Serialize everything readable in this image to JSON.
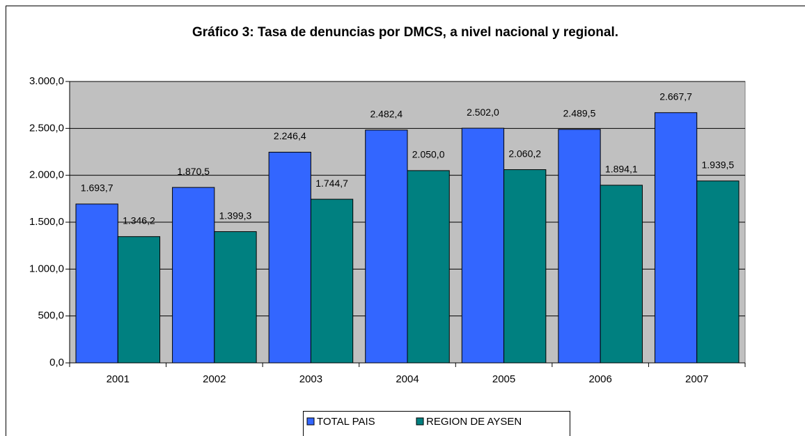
{
  "chart_data": {
    "type": "bar",
    "title": "Gráfico 3: Tasa de denuncias por DMCS, a nivel nacional y regional.",
    "categories": [
      "2001",
      "2002",
      "2003",
      "2004",
      "2005",
      "2006",
      "2007"
    ],
    "series": [
      {
        "name": "TOTAL PAIS",
        "color": "#3366ff",
        "values": [
          1693.7,
          1870.5,
          2246.4,
          2482.4,
          2502.0,
          2489.5,
          2667.7
        ],
        "value_labels": [
          "1.693,7",
          "1.870,5",
          "2.246,4",
          "2.482,4",
          "2.502,0",
          "2.489,5",
          "2.667,7"
        ]
      },
      {
        "name": "REGION DE AYSEN",
        "color": "#008080",
        "values": [
          1346.2,
          1399.3,
          1744.7,
          2050.0,
          2060.2,
          1894.1,
          1939.5
        ],
        "value_labels": [
          "1.346,2",
          "1.399,3",
          "1.744,7",
          "2.050,0",
          "2.060,2",
          "1.894,1",
          "1.939,5"
        ]
      }
    ],
    "ylim": [
      0,
      3000
    ],
    "yticks": [
      {
        "value": 0,
        "label": "0,0"
      },
      {
        "value": 500,
        "label": "500,0"
      },
      {
        "value": 1000,
        "label": "1.000,0"
      },
      {
        "value": 1500,
        "label": "1.500,0"
      },
      {
        "value": 2000,
        "label": "2.000,0"
      },
      {
        "value": 2500,
        "label": "2.500,0"
      },
      {
        "value": 3000,
        "label": "3.000,0"
      }
    ],
    "grid": true,
    "legend": "bottom",
    "plot_background": "#c0c0c0"
  }
}
